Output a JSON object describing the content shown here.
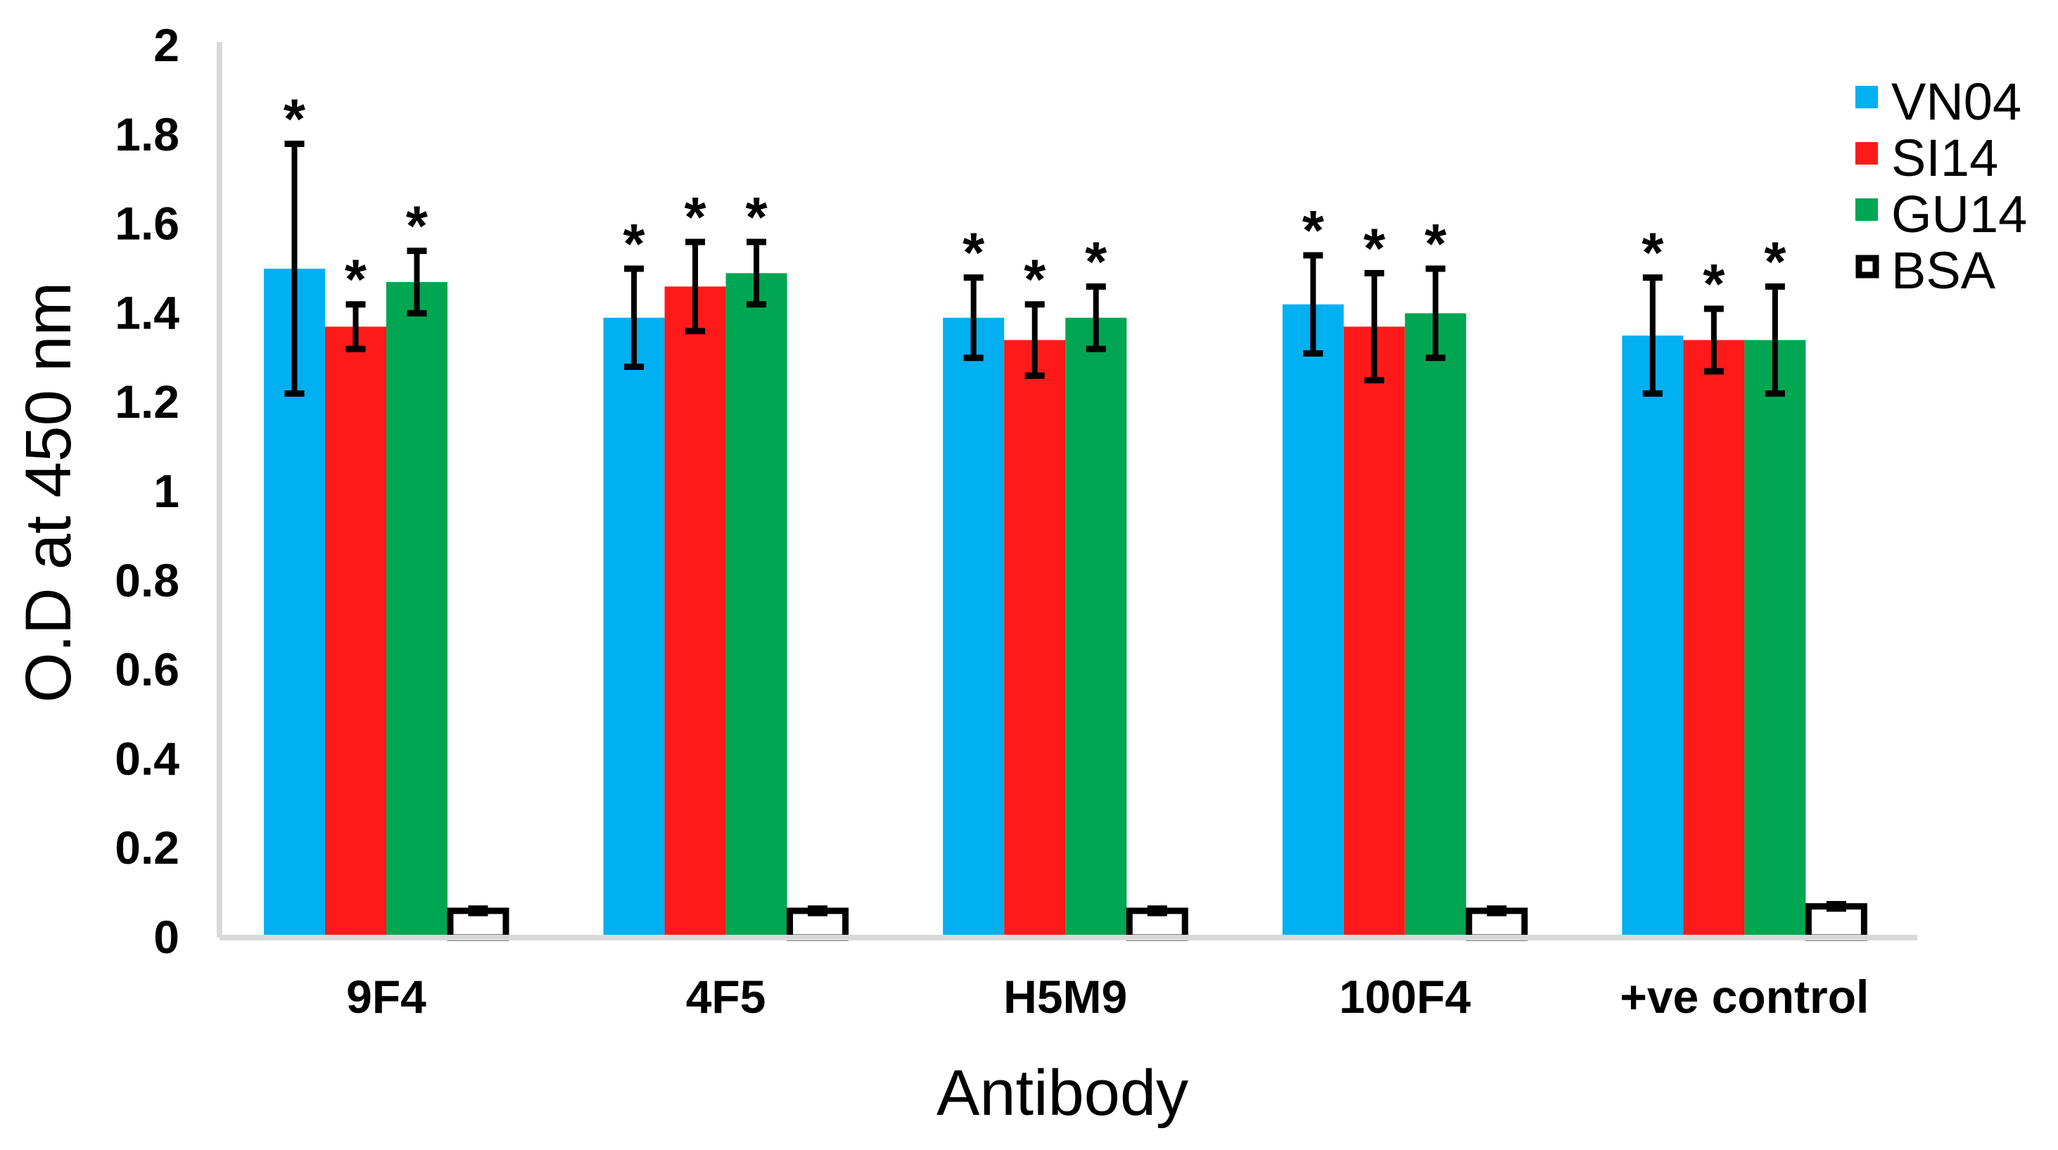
{
  "chart_data": {
    "type": "bar",
    "xlabel": "Antibody",
    "ylabel": "O.D at 450 nm",
    "ylim": [
      0,
      2
    ],
    "yticks": [
      "0",
      "0.2",
      "0.4",
      "0.6",
      "0.8",
      "1",
      "1.2",
      "1.4",
      "1.6",
      "1.8",
      "2"
    ],
    "categories": [
      "9F4",
      "4F5",
      "H5M9",
      "100F4",
      "+ve control"
    ],
    "series": [
      {
        "name": "VN04",
        "color": "#00b0f0",
        "values": [
          1.5,
          1.39,
          1.39,
          1.42,
          1.35
        ],
        "errors": [
          0.28,
          0.11,
          0.09,
          0.11,
          0.13
        ],
        "significant": [
          true,
          true,
          true,
          true,
          true
        ]
      },
      {
        "name": "SI14",
        "color": "#ff1a1a",
        "values": [
          1.37,
          1.46,
          1.34,
          1.37,
          1.34
        ],
        "errors": [
          0.05,
          0.1,
          0.08,
          0.12,
          0.07
        ],
        "significant": [
          true,
          true,
          true,
          true,
          true
        ]
      },
      {
        "name": "GU14",
        "color": "#00a651",
        "values": [
          1.47,
          1.49,
          1.39,
          1.4,
          1.34
        ],
        "errors": [
          0.07,
          0.07,
          0.07,
          0.1,
          0.12
        ],
        "significant": [
          true,
          true,
          true,
          true,
          true
        ]
      },
      {
        "name": "BSA",
        "color": "#ffffff",
        "outline": "#000000",
        "values": [
          0.06,
          0.06,
          0.06,
          0.06,
          0.07
        ],
        "errors": [
          0.005,
          0.005,
          0.005,
          0.005,
          0.005
        ],
        "significant": [
          false,
          false,
          false,
          false,
          false
        ]
      }
    ],
    "significance_marker": "*",
    "legend_position": "top-right",
    "grid": false
  }
}
